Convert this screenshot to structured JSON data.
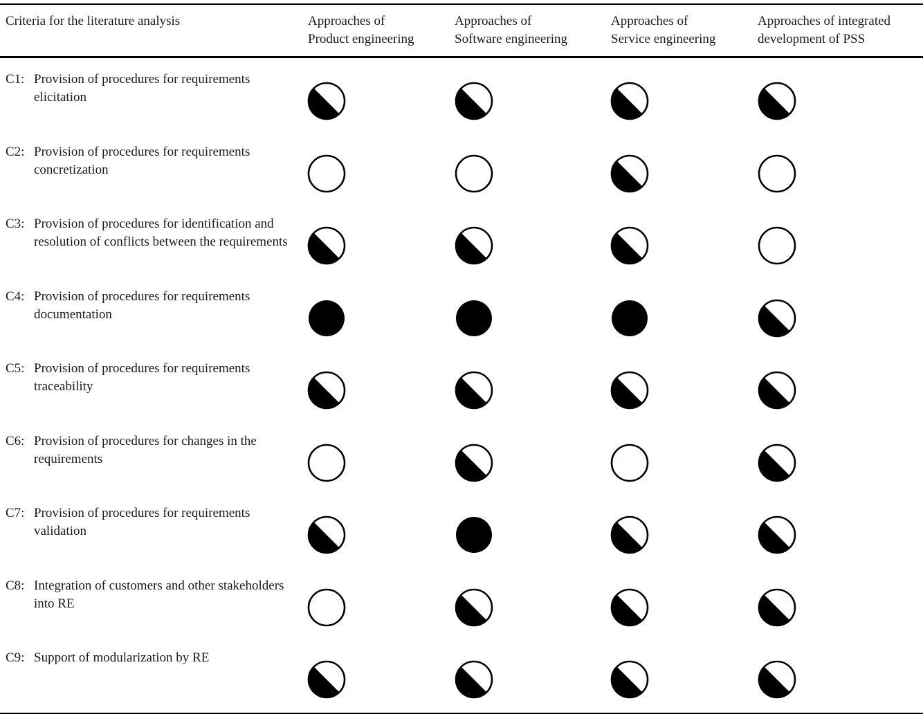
{
  "headers": [
    "Criteria for the literature analysis",
    "Approaches of\nProduct engineering",
    "Approaches of\nSoftware engineering",
    "Approaches of\nService engineering",
    "Approaches of integrated\ndevelopment of PSS"
  ],
  "rows": [
    {
      "id": "C1:",
      "text": "Provision of procedures for requirements elicitation",
      "ratings": [
        "half",
        "half",
        "half",
        "half"
      ]
    },
    {
      "id": "C2:",
      "text": "Provision of procedures for requirements concretization",
      "ratings": [
        "empty",
        "empty",
        "half",
        "empty"
      ]
    },
    {
      "id": "C3:",
      "text": "Provision of procedures for identification and resolution of conflicts between the requirements",
      "ratings": [
        "half",
        "half",
        "half",
        "empty"
      ]
    },
    {
      "id": "C4:",
      "text": "Provision of procedures for requirements documentation",
      "ratings": [
        "full",
        "full",
        "full",
        "half"
      ]
    },
    {
      "id": "C5:",
      "text": "Provision of procedures for requirements traceability",
      "ratings": [
        "half",
        "half",
        "half",
        "half"
      ]
    },
    {
      "id": "C6:",
      "text": "Provision of procedures for changes in the requirements",
      "ratings": [
        "empty",
        "half",
        "empty",
        "half"
      ]
    },
    {
      "id": "C7:",
      "text": "Provision of procedures for requirements validation",
      "ratings": [
        "half",
        "full",
        "half",
        "half"
      ]
    },
    {
      "id": "C8:",
      "text": "Integration of customers and other stakeholders into RE",
      "ratings": [
        "empty",
        "half",
        "half",
        "half"
      ]
    },
    {
      "id": "C9:",
      "text": "Support of modularization by RE",
      "ratings": [
        "half",
        "half",
        "half",
        "half"
      ]
    }
  ]
}
